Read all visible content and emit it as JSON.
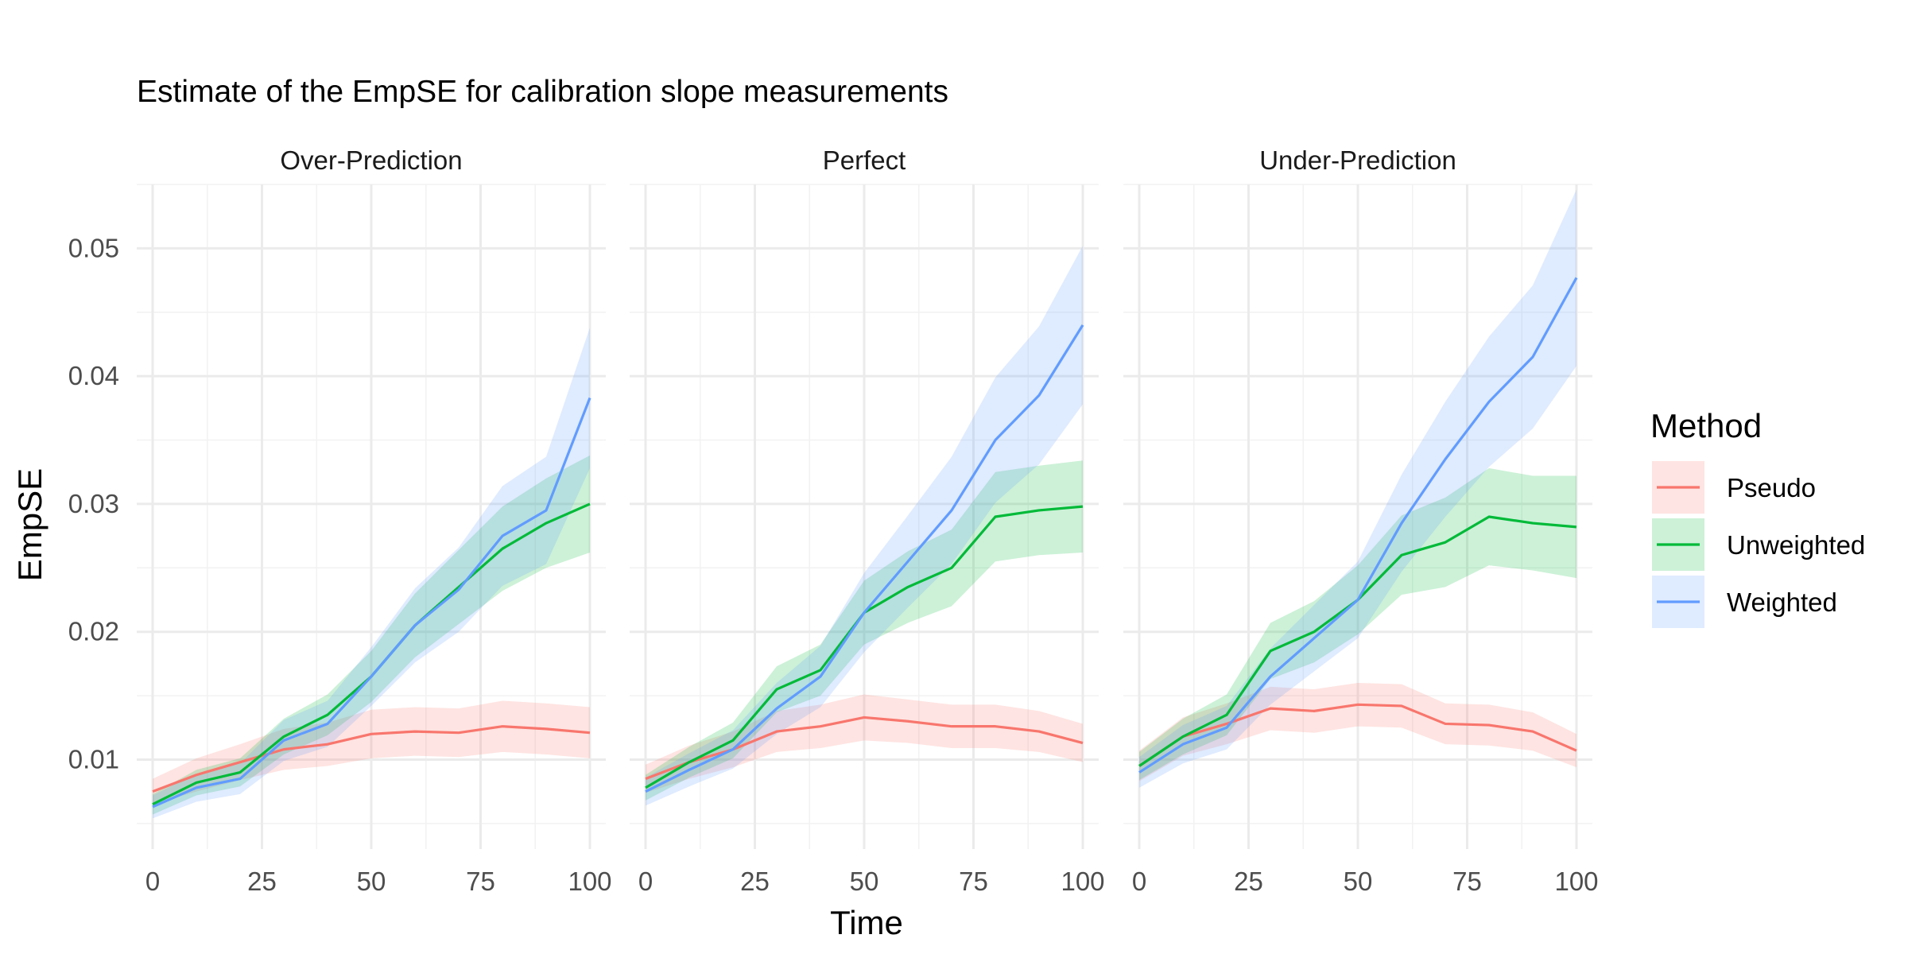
{
  "chart_data": {
    "type": "line",
    "title": "Estimate of the EmpSE for calibration slope measurements",
    "xlabel": "Time",
    "ylabel": "EmpSE",
    "xlim": [
      0,
      100
    ],
    "ylim": [
      0.003,
      0.055
    ],
    "x_ticks": [
      "0",
      "25",
      "50",
      "75",
      "100"
    ],
    "y_ticks": [
      "0.01",
      "0.02",
      "0.03",
      "0.04",
      "0.05"
    ],
    "x_tick_values": [
      0,
      25,
      50,
      75,
      100
    ],
    "y_tick_values": [
      0.01,
      0.02,
      0.03,
      0.04,
      0.05
    ],
    "grid": true,
    "legend": {
      "title": "Method",
      "position": "right",
      "entries": [
        "Pseudo",
        "Unweighted",
        "Weighted"
      ]
    },
    "colors": {
      "Pseudo": "#F8766D",
      "Unweighted": "#00BA38",
      "Weighted": "#619CFF"
    },
    "x": [
      0,
      10,
      20,
      30,
      40,
      50,
      60,
      70,
      80,
      90,
      100
    ],
    "panels": [
      {
        "name": "Over-Prediction",
        "series": [
          {
            "name": "Pseudo",
            "values": [
              0.0075,
              0.0088,
              0.0098,
              0.0108,
              0.0112,
              0.012,
              0.0122,
              0.0121,
              0.0126,
              0.0124,
              0.0121
            ],
            "band": [
              [
                0.0065,
                0.0085
              ],
              [
                0.0075,
                0.0101
              ],
              [
                0.0084,
                0.0112
              ],
              [
                0.0092,
                0.0124
              ],
              [
                0.0095,
                0.0129
              ],
              [
                0.0101,
                0.0139
              ],
              [
                0.0103,
                0.0141
              ],
              [
                0.0102,
                0.014
              ],
              [
                0.0106,
                0.0146
              ],
              [
                0.0104,
                0.0144
              ],
              [
                0.0101,
                0.0141
              ]
            ]
          },
          {
            "name": "Unweighted",
            "values": [
              0.0065,
              0.0082,
              0.009,
              0.0118,
              0.0135,
              0.0165,
              0.0205,
              0.0235,
              0.0265,
              0.0285,
              0.03
            ],
            "band": [
              [
                0.0057,
                0.0073
              ],
              [
                0.0072,
                0.0092
              ],
              [
                0.0079,
                0.0101
              ],
              [
                0.0104,
                0.0132
              ],
              [
                0.0119,
                0.0151
              ],
              [
                0.0145,
                0.0185
              ],
              [
                0.018,
                0.023
              ],
              [
                0.0206,
                0.0264
              ],
              [
                0.0232,
                0.0298
              ],
              [
                0.025,
                0.032
              ],
              [
                0.0262,
                0.0338
              ]
            ]
          },
          {
            "name": "Weighted",
            "values": [
              0.0063,
              0.0078,
              0.0085,
              0.0115,
              0.0128,
              0.0165,
              0.0205,
              0.0233,
              0.0275,
              0.0295,
              0.0383
            ],
            "band": [
              [
                0.0054,
                0.0072
              ],
              [
                0.0067,
                0.0089
              ],
              [
                0.0073,
                0.0097
              ],
              [
                0.0099,
                0.0131
              ],
              [
                0.011,
                0.0146
              ],
              [
                0.0142,
                0.0188
              ],
              [
                0.0176,
                0.0234
              ],
              [
                0.02,
                0.0266
              ],
              [
                0.0236,
                0.0314
              ],
              [
                0.0253,
                0.0337
              ],
              [
                0.0328,
                0.0438
              ]
            ]
          }
        ]
      },
      {
        "name": "Perfect",
        "series": [
          {
            "name": "Pseudo",
            "values": [
              0.0085,
              0.0098,
              0.0108,
              0.0122,
              0.0126,
              0.0133,
              0.013,
              0.0126,
              0.0126,
              0.0122,
              0.0113
            ],
            "band": [
              [
                0.0074,
                0.0096
              ],
              [
                0.0085,
                0.0111
              ],
              [
                0.0094,
                0.0122
              ],
              [
                0.0106,
                0.0138
              ],
              [
                0.0109,
                0.0143
              ],
              [
                0.0115,
                0.0151
              ],
              [
                0.0113,
                0.0147
              ],
              [
                0.0109,
                0.0143
              ],
              [
                0.0109,
                0.0143
              ],
              [
                0.0106,
                0.0138
              ],
              [
                0.0098,
                0.0128
              ]
            ]
          },
          {
            "name": "Unweighted",
            "values": [
              0.0078,
              0.0098,
              0.0115,
              0.0155,
              0.017,
              0.0215,
              0.0235,
              0.025,
              0.029,
              0.0295,
              0.0298
            ],
            "band": [
              [
                0.0068,
                0.0088
              ],
              [
                0.0086,
                0.011
              ],
              [
                0.0101,
                0.0129
              ],
              [
                0.0137,
                0.0173
              ],
              [
                0.015,
                0.019
              ],
              [
                0.019,
                0.024
              ],
              [
                0.0207,
                0.0263
              ],
              [
                0.022,
                0.028
              ],
              [
                0.0255,
                0.0325
              ],
              [
                0.026,
                0.033
              ],
              [
                0.0262,
                0.0334
              ]
            ]
          },
          {
            "name": "Weighted",
            "values": [
              0.0075,
              0.0092,
              0.0108,
              0.014,
              0.0165,
              0.0215,
              0.0255,
              0.0295,
              0.035,
              0.0385,
              0.044
            ],
            "band": [
              [
                0.0064,
                0.0086
              ],
              [
                0.0079,
                0.0105
              ],
              [
                0.0093,
                0.0123
              ],
              [
                0.012,
                0.016
              ],
              [
                0.0141,
                0.0189
              ],
              [
                0.0184,
                0.0246
              ],
              [
                0.0219,
                0.0291
              ],
              [
                0.0253,
                0.0337
              ],
              [
                0.0301,
                0.0399
              ],
              [
                0.0331,
                0.0439
              ],
              [
                0.0378,
                0.0502
              ]
            ]
          }
        ]
      },
      {
        "name": "Under-Prediction",
        "series": [
          {
            "name": "Pseudo",
            "values": [
              0.0095,
              0.0118,
              0.0128,
              0.014,
              0.0138,
              0.0143,
              0.0142,
              0.0128,
              0.0127,
              0.0122,
              0.0107
            ],
            "band": [
              [
                0.0083,
                0.0107
              ],
              [
                0.0103,
                0.0133
              ],
              [
                0.0112,
                0.0144
              ],
              [
                0.0123,
                0.0157
              ],
              [
                0.0121,
                0.0155
              ],
              [
                0.0126,
                0.016
              ],
              [
                0.0125,
                0.0159
              ],
              [
                0.0112,
                0.0144
              ],
              [
                0.0111,
                0.0143
              ],
              [
                0.0107,
                0.0137
              ],
              [
                0.0094,
                0.012
              ]
            ]
          },
          {
            "name": "Unweighted",
            "values": [
              0.0095,
              0.0118,
              0.0135,
              0.0185,
              0.02,
              0.0225,
              0.026,
              0.027,
              0.029,
              0.0285,
              0.0282
            ],
            "band": [
              [
                0.0084,
                0.0106
              ],
              [
                0.0104,
                0.0132
              ],
              [
                0.0119,
                0.0151
              ],
              [
                0.0163,
                0.0207
              ],
              [
                0.0176,
                0.0224
              ],
              [
                0.0198,
                0.0252
              ],
              [
                0.0229,
                0.0291
              ],
              [
                0.0235,
                0.0305
              ],
              [
                0.0252,
                0.0328
              ],
              [
                0.0248,
                0.0322
              ],
              [
                0.0242,
                0.0322
              ]
            ]
          },
          {
            "name": "Weighted",
            "values": [
              0.009,
              0.0112,
              0.0125,
              0.0165,
              0.0195,
              0.0225,
              0.0285,
              0.0335,
              0.038,
              0.0415,
              0.0477
            ],
            "band": [
              [
                0.0078,
                0.0102
              ],
              [
                0.0097,
                0.0127
              ],
              [
                0.0108,
                0.0142
              ],
              [
                0.0143,
                0.0187
              ],
              [
                0.0169,
                0.0221
              ],
              [
                0.0195,
                0.0255
              ],
              [
                0.0247,
                0.0323
              ],
              [
                0.029,
                0.038
              ],
              [
                0.0329,
                0.0431
              ],
              [
                0.0359,
                0.0471
              ],
              [
                0.0408,
                0.0546
              ]
            ]
          }
        ]
      }
    ]
  }
}
